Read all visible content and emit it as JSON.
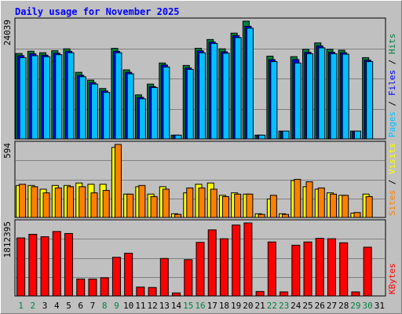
{
  "chart_data": [
    {
      "type": "bar",
      "title": "Daily usage for November 2025",
      "categories": [
        "1",
        "2",
        "3",
        "4",
        "5",
        "6",
        "7",
        "8",
        "9",
        "10",
        "11",
        "12",
        "13",
        "14",
        "15",
        "16",
        "17",
        "18",
        "19",
        "20",
        "21",
        "22",
        "23",
        "24",
        "25",
        "26",
        "27",
        "28",
        "29",
        "30",
        "31"
      ],
      "weekend_categories": [
        "1",
        "2",
        "8",
        "9",
        "15",
        "16",
        "22",
        "23",
        "29",
        "30"
      ],
      "ymax_label": "24039",
      "ylim": [
        0,
        24039
      ],
      "side_label_parts": [
        "Pages",
        "Files",
        "Hits"
      ],
      "side_label_colors": [
        "#00c0ff",
        "#0000ff",
        "#008040"
      ],
      "series": [
        {
          "name": "Hits",
          "color": "#008040",
          "values": [
            17440,
            17900,
            17600,
            18000,
            18400,
            13600,
            12000,
            10300,
            18500,
            14100,
            9000,
            11200,
            15500,
            770,
            15000,
            18500,
            20300,
            18400,
            21600,
            24039,
            770,
            16900,
            1600,
            16800,
            18300,
            19600,
            18300,
            18100,
            1600,
            16600,
            0
          ]
        },
        {
          "name": "Files",
          "color": "#0000ff",
          "values": [
            17000,
            17400,
            17100,
            17500,
            17900,
            13000,
            11500,
            9800,
            17900,
            13600,
            8500,
            10700,
            15100,
            770,
            14500,
            18000,
            19800,
            17800,
            21100,
            23000,
            770,
            16200,
            1600,
            16200,
            17700,
            19000,
            17700,
            17600,
            1600,
            16100,
            0
          ]
        },
        {
          "name": "Pages",
          "color": "#00c0ff",
          "values": [
            16600,
            17000,
            16800,
            17200,
            17600,
            12700,
            11200,
            9500,
            17600,
            13300,
            8200,
            10500,
            14700,
            770,
            14200,
            17600,
            19500,
            17500,
            20700,
            22600,
            770,
            15800,
            1600,
            15500,
            17400,
            18600,
            17400,
            17300,
            1600,
            15800,
            0
          ]
        }
      ]
    },
    {
      "type": "bar",
      "ymax_label": "594",
      "ylim": [
        0,
        594
      ],
      "side_label_parts": [
        "Sites",
        "Visits"
      ],
      "side_label_colors": [
        "#ff8000",
        "#ffff00"
      ],
      "series": [
        {
          "name": "Visits",
          "color": "#ffff00",
          "values": [
            260,
            260,
            230,
            260,
            260,
            280,
            270,
            270,
            570,
            190,
            250,
            190,
            250,
            30,
            200,
            270,
            280,
            180,
            200,
            190,
            30,
            150,
            30,
            300,
            250,
            230,
            200,
            180,
            35,
            190,
            0
          ]
        },
        {
          "name": "Sites",
          "color": "#ff8000",
          "values": [
            270,
            250,
            200,
            240,
            250,
            250,
            200,
            220,
            594,
            190,
            260,
            170,
            230,
            25,
            240,
            240,
            230,
            170,
            190,
            190,
            25,
            180,
            25,
            310,
            290,
            240,
            190,
            180,
            40,
            170,
            0
          ]
        }
      ]
    },
    {
      "type": "bar",
      "ymax_label": "1812395",
      "ylim": [
        0,
        1812395
      ],
      "side_label_parts": [
        "KBytes"
      ],
      "side_label_colors": [
        "#ff0000"
      ],
      "series": [
        {
          "name": "KBytes",
          "color": "#ff0000",
          "values": [
            1440000,
            1530000,
            1470000,
            1600000,
            1550000,
            420000,
            420000,
            450000,
            960000,
            1060000,
            220000,
            210000,
            930000,
            75000,
            900000,
            1330000,
            1640000,
            1420000,
            1760000,
            1812395,
            110000,
            1340000,
            100000,
            1260000,
            1340000,
            1430000,
            1420000,
            1320000,
            100000,
            1210000,
            0
          ]
        }
      ]
    }
  ]
}
